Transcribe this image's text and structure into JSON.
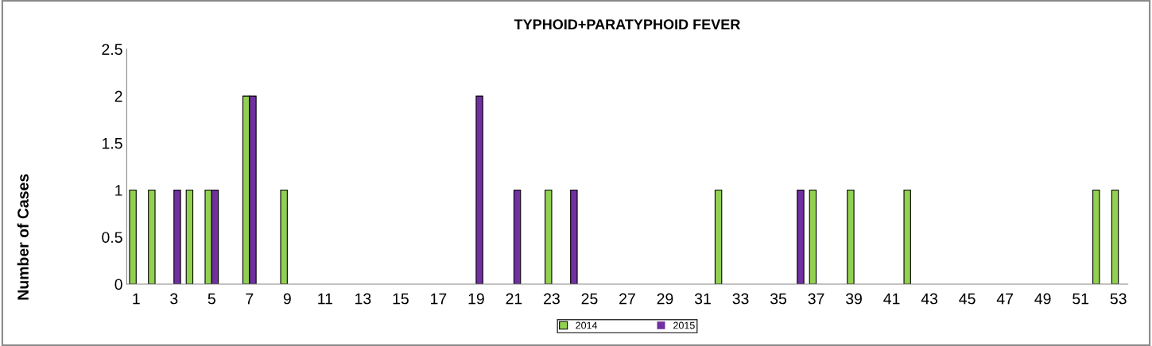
{
  "chart_data": {
    "type": "bar",
    "title": "TYPHOID+PARATYPHOID FEVER",
    "ylabel": "Number of Cases",
    "categories": [
      "1",
      null,
      "3",
      null,
      "5",
      null,
      "7",
      null,
      "9",
      null,
      "11",
      null,
      "13",
      null,
      "15",
      null,
      "17",
      null,
      "19",
      null,
      "21",
      null,
      "23",
      null,
      "25",
      null,
      "27",
      null,
      "29",
      null,
      "31",
      null,
      "33",
      null,
      "35",
      null,
      "37",
      null,
      "39",
      null,
      "41",
      null,
      "43",
      null,
      "45",
      null,
      "47",
      null,
      "49",
      null,
      "51",
      null,
      "53"
    ],
    "series": [
      {
        "name": "2014",
        "color": "#92d050",
        "values": [
          1,
          1,
          0,
          1,
          1,
          0,
          2,
          0,
          1,
          0,
          0,
          0,
          0,
          0,
          0,
          0,
          0,
          0,
          0,
          0,
          0,
          0,
          1,
          0,
          0,
          0,
          0,
          0,
          0,
          0,
          0,
          1,
          0,
          0,
          0,
          0,
          1,
          0,
          1,
          0,
          0,
          1,
          0,
          0,
          0,
          0,
          0,
          0,
          0,
          0,
          0,
          1,
          1
        ]
      },
      {
        "name": "2015",
        "color": "#7030a0",
        "values": [
          0,
          0,
          1,
          0,
          1,
          0,
          2,
          0,
          0,
          0,
          0,
          0,
          0,
          0,
          0,
          0,
          0,
          0,
          2,
          0,
          1,
          0,
          0,
          1,
          0,
          0,
          0,
          0,
          0,
          0,
          0,
          0,
          0,
          0,
          0,
          1,
          0,
          0,
          0,
          0,
          0,
          0,
          0,
          0,
          0,
          0,
          0,
          0,
          0,
          0,
          0,
          0,
          0
        ]
      }
    ],
    "ylim": [
      0,
      2.5
    ],
    "yticks": [
      0,
      0.5,
      1,
      1.5,
      2,
      2.5
    ],
    "grid": false,
    "legend": "bottom"
  }
}
